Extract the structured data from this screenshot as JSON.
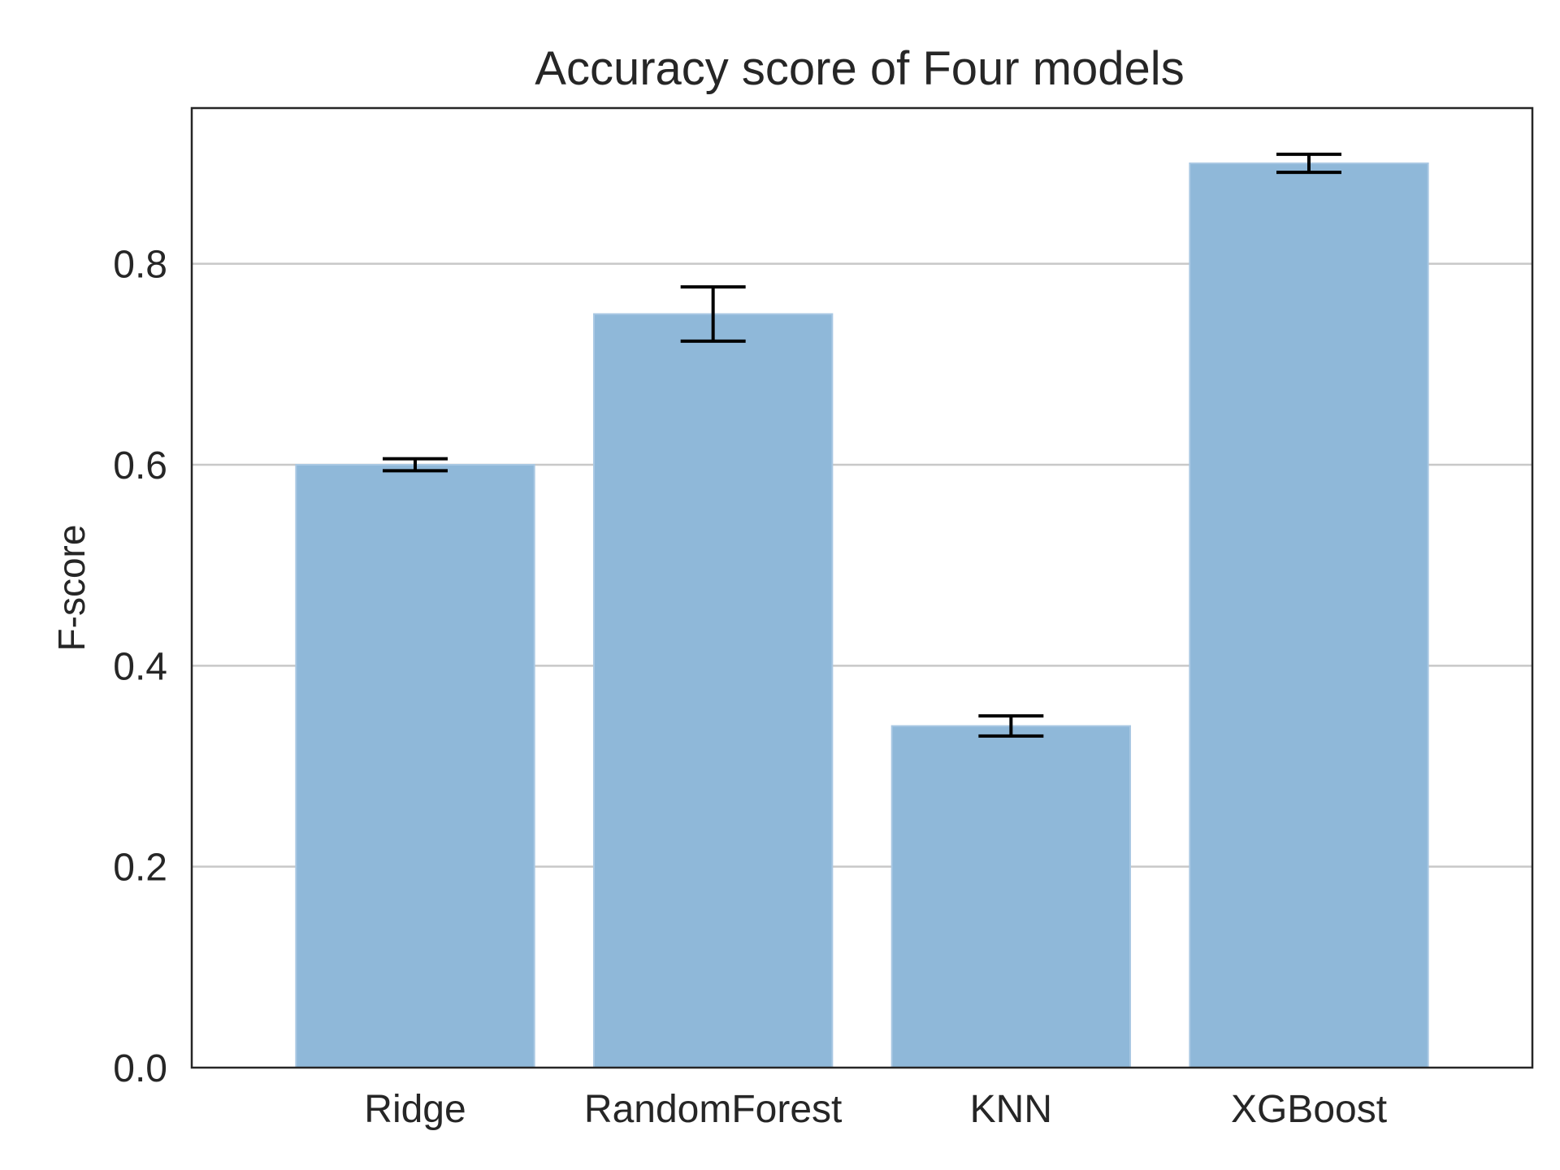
{
  "chart_data": {
    "type": "bar",
    "title": "Accuracy score of Four models",
    "xlabel": "",
    "ylabel": "F-score",
    "categories": [
      "Ridge",
      "RandomForest",
      "KNN",
      "XGBoost"
    ],
    "values": [
      0.6,
      0.75,
      0.34,
      0.9
    ],
    "error": [
      0.006,
      0.027,
      0.01,
      0.009
    ],
    "ylim": [
      0,
      0.955
    ],
    "yticks": [
      0.0,
      0.2,
      0.4,
      0.6,
      0.8
    ],
    "ytick_labels": [
      "0.0",
      "0.2",
      "0.4",
      "0.6",
      "0.8"
    ],
    "grid": "horizontal",
    "bar_color": "#8fb8d9",
    "error_color": "#000000"
  }
}
